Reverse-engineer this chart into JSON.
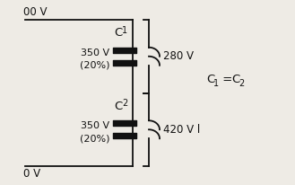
{
  "bg_color": "#eeebe5",
  "line_color": "#111111",
  "top_voltage": "00 V",
  "bot_voltage": "0 V",
  "c1_label": "C",
  "c1_sub": "1",
  "c2_label": "C",
  "c2_sub": "2",
  "c1_rating": "350 V",
  "c1_tol": "(20%)",
  "c2_rating": "350 V",
  "c2_tol": "(20%)",
  "v1_label": "280 V",
  "v2_label": "420 V l",
  "font_size_main": 8.5,
  "font_size_small": 8,
  "font_size_sub": 6
}
